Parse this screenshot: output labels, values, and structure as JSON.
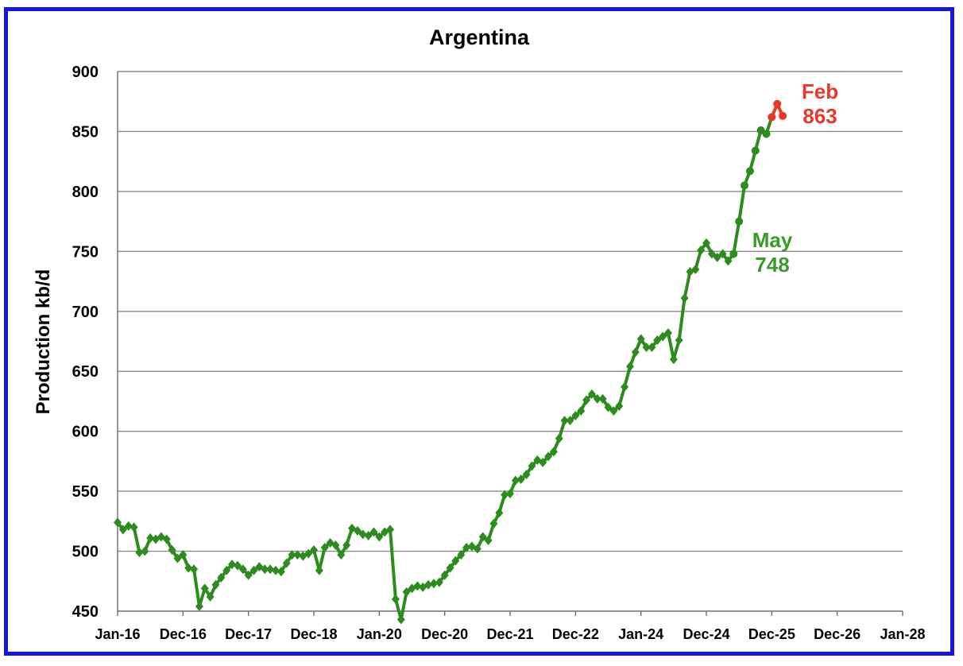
{
  "chart_data": {
    "type": "line",
    "title": "Argentina",
    "xlabel": "",
    "ylabel": "Production kb/d",
    "ylim": [
      450,
      900
    ],
    "y_ticks": [
      450,
      500,
      550,
      600,
      650,
      700,
      750,
      800,
      850,
      900
    ],
    "x_tick_labels": [
      "Jan-16",
      "Dec-16",
      "Dec-17",
      "Dec-18",
      "Jan-20",
      "Dec-20",
      "Dec-21",
      "Dec-22",
      "Jan-24",
      "Dec-24",
      "Dec-25",
      "Dec-26",
      "Jan-28"
    ],
    "grid": "horizontal",
    "series": [
      {
        "color": "#2e8b1f",
        "marker": "diamond",
        "values": [
          524,
          518,
          521,
          520,
          499,
          500,
          511,
          510,
          512,
          510,
          501,
          494,
          497,
          486,
          485,
          454,
          469,
          462,
          472,
          478,
          484,
          489,
          488,
          485,
          480,
          484,
          487,
          485,
          485,
          484,
          483,
          490,
          497,
          497,
          496,
          498,
          501,
          484,
          503,
          507,
          505,
          497,
          505,
          519,
          517,
          514,
          513,
          516,
          512,
          516,
          518,
          460,
          443,
          466,
          469,
          471,
          470,
          472,
          473,
          474,
          480,
          486,
          492,
          497,
          503,
          504,
          502,
          512,
          509,
          523,
          532,
          547,
          548,
          559,
          560,
          564,
          571,
          576,
          574,
          579,
          583,
          594,
          609,
          609,
          613,
          617,
          626,
          631,
          627,
          627,
          620,
          617,
          621,
          637,
          654,
          666,
          677,
          670,
          670,
          676,
          679,
          682,
          660,
          676,
          711,
          733,
          735,
          751,
          757,
          748,
          745,
          748,
          742,
          748
        ]
      },
      {
        "color": "#2e8b1f",
        "marker": "circle",
        "values": [
          748,
          775,
          805,
          817,
          834,
          851,
          848,
          862
        ]
      },
      {
        "color": "#e8382a",
        "marker": "circle",
        "values": [
          862,
          873,
          863
        ]
      }
    ],
    "annotations": [
      {
        "lines": [
          "May",
          "748"
        ],
        "color": "#3a9a2a"
      },
      {
        "lines": [
          "Feb",
          "863"
        ],
        "color": "#e8382a"
      }
    ]
  }
}
